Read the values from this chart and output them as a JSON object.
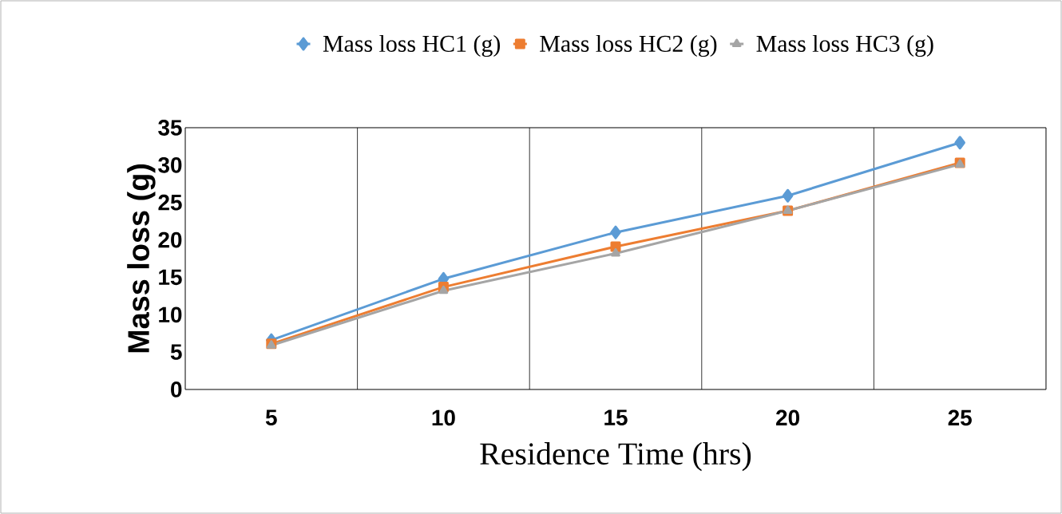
{
  "chart_data": {
    "type": "line",
    "xlabel": "Residence Time (hrs)",
    "ylabel": "Mass loss (g)",
    "categories": [
      "5",
      "10",
      "15",
      "20",
      "25"
    ],
    "series": [
      {
        "name": "Mass loss HC1 (g)",
        "color": "#5b9bd5",
        "marker": "diamond",
        "values": [
          6.6,
          14.8,
          21.0,
          25.9,
          33.0
        ]
      },
      {
        "name": "Mass loss HC2 (g)",
        "color": "#ed7d31",
        "marker": "square",
        "values": [
          6.1,
          13.7,
          19.1,
          23.9,
          30.3
        ]
      },
      {
        "name": "Mass loss HC3 (g)",
        "color": "#a5a5a5",
        "marker": "triangle",
        "values": [
          5.9,
          13.2,
          18.2,
          23.9,
          30.1
        ]
      }
    ],
    "ylim": [
      0,
      35
    ],
    "yticks": [
      0,
      5,
      10,
      15,
      20,
      25,
      30,
      35
    ],
    "grid": "x",
    "legend": "top",
    "line_style": "solid"
  }
}
